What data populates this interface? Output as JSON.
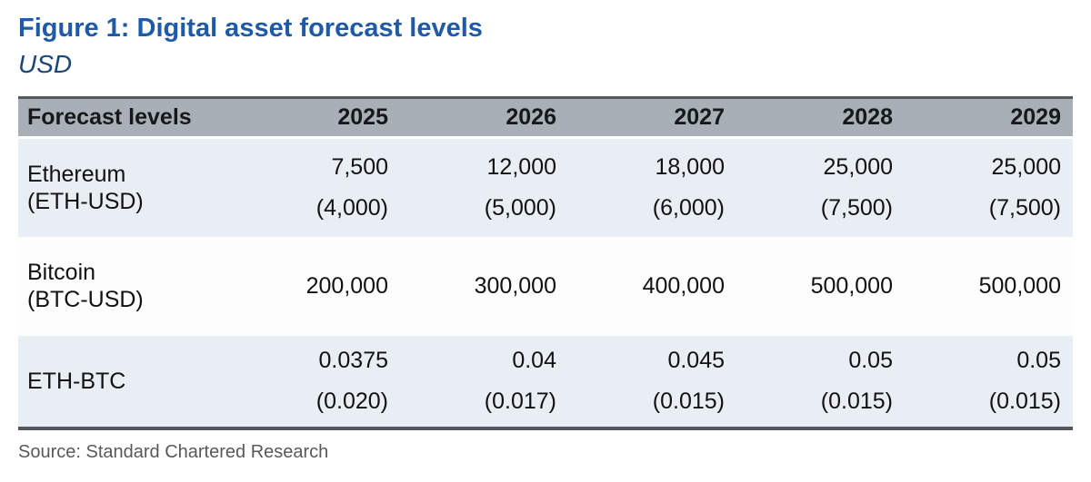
{
  "figure": {
    "title": "Figure 1: Digital asset forecast levels",
    "subtitle": "USD",
    "source": "Source: Standard Chartered Research"
  },
  "table": {
    "header": [
      "Forecast levels",
      "2025",
      "2026",
      "2027",
      "2028",
      "2029"
    ],
    "rows": [
      {
        "label": "Ethereum",
        "sublabel": "(ETH-USD)",
        "values": [
          {
            "main": "7,500",
            "sub": "(4,000)"
          },
          {
            "main": "12,000",
            "sub": "(5,000)"
          },
          {
            "main": "18,000",
            "sub": "(6,000)"
          },
          {
            "main": "25,000",
            "sub": "(7,500)"
          },
          {
            "main": "25,000",
            "sub": "(7,500)"
          }
        ]
      },
      {
        "label": "Bitcoin",
        "sublabel": "(BTC-USD)",
        "values": [
          {
            "main": "200,000"
          },
          {
            "main": "300,000"
          },
          {
            "main": "400,000"
          },
          {
            "main": "500,000"
          },
          {
            "main": "500,000"
          }
        ]
      },
      {
        "label": "ETH-BTC",
        "sublabel": "",
        "values": [
          {
            "main": "0.0375",
            "sub": "(0.020)"
          },
          {
            "main": "0.04",
            "sub": "(0.017)"
          },
          {
            "main": "0.045",
            "sub": "(0.015)"
          },
          {
            "main": "0.05",
            "sub": "(0.015)"
          },
          {
            "main": "0.05",
            "sub": "(0.015)"
          }
        ]
      }
    ]
  },
  "colors": {
    "title_blue": "#1f5aa8",
    "subtitle_navy": "#1d4678",
    "header_bg": "#a9afb6",
    "row_alt_bg": "#e9eef5",
    "row_plain_bg": "#fdfdfd",
    "border_dark": "#55595e",
    "source_gray": "#595959"
  },
  "chart_data": {
    "type": "table",
    "title": "Figure 1: Digital asset forecast levels",
    "unit": "USD",
    "columns": [
      "Forecast levels",
      "2025",
      "2026",
      "2027",
      "2028",
      "2029"
    ],
    "rows": [
      [
        "Ethereum (ETH-USD)",
        "7,500 (4,000)",
        "12,000 (5,000)",
        "18,000 (6,000)",
        "25,000 (7,500)",
        "25,000 (7,500)"
      ],
      [
        "Bitcoin (BTC-USD)",
        "200,000",
        "300,000",
        "400,000",
        "500,000",
        "500,000"
      ],
      [
        "ETH-BTC",
        "0.0375 (0.020)",
        "0.04 (0.017)",
        "0.045 (0.015)",
        "0.05 (0.015)",
        "0.05 (0.015)"
      ]
    ],
    "source": "Source: Standard Chartered Research"
  }
}
